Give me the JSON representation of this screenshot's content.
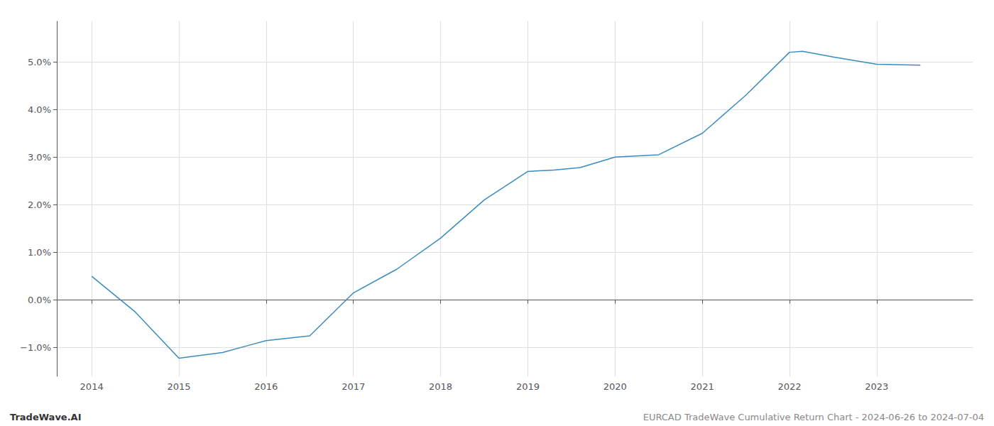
{
  "chart_data": {
    "type": "line",
    "x": [
      2014,
      2014.5,
      2015,
      2015.5,
      2015.8,
      2016,
      2016.5,
      2017,
      2017.5,
      2018,
      2018.5,
      2019,
      2019.3,
      2019.6,
      2020,
      2020.5,
      2021,
      2021.5,
      2022,
      2022.15,
      2022.5,
      2023,
      2023.5
    ],
    "values": [
      0.5,
      -0.25,
      -1.22,
      -1.1,
      -0.95,
      -0.85,
      -0.75,
      0.15,
      0.65,
      1.3,
      2.1,
      2.7,
      2.73,
      2.78,
      3.0,
      3.05,
      3.5,
      4.3,
      5.2,
      5.22,
      5.1,
      4.95,
      4.93
    ],
    "color": "#3a8bbf",
    "xlim": [
      2013.6,
      2024.1
    ],
    "ylim": [
      -1.6,
      5.85
    ],
    "xticks": [
      2014,
      2015,
      2016,
      2017,
      2018,
      2019,
      2020,
      2021,
      2022,
      2023
    ],
    "yticks": [
      {
        "value": -1.0,
        "label": "−1.0%"
      },
      {
        "value": 0.0,
        "label": "0.0%"
      },
      {
        "value": 1.0,
        "label": "1.0%"
      },
      {
        "value": 2.0,
        "label": "2.0%"
      },
      {
        "value": 3.0,
        "label": "3.0%"
      },
      {
        "value": 4.0,
        "label": "4.0%"
      },
      {
        "value": 5.0,
        "label": "5.0%"
      }
    ],
    "grid": true,
    "annotations": [
      "TradeWave.AI",
      "EURCAD TradeWave Cumulative Return Chart - 2024-06-26 to 2024-07-04"
    ]
  }
}
